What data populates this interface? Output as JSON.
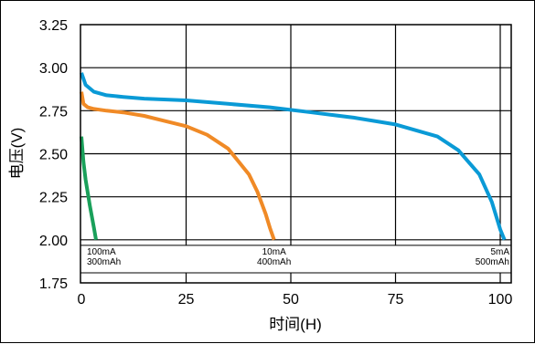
{
  "chart_data": {
    "type": "line",
    "xlabel": "时间(H)",
    "ylabel": "电压(V)",
    "xlim": [
      0,
      100
    ],
    "ylim": [
      1.75,
      3.25
    ],
    "x_ticks": [
      "0",
      "25",
      "50",
      "75",
      "100"
    ],
    "y_ticks": [
      "3.25",
      "3.00",
      "2.75",
      "2.50",
      "2.25",
      "2.00",
      "1.75"
    ],
    "grid": true,
    "series": [
      {
        "color": "#0a9ad6",
        "x": [
          0,
          1,
          3,
          6,
          10,
          15,
          25,
          35,
          45,
          55,
          65,
          75,
          85,
          90,
          95,
          98,
          100,
          101
        ],
        "y": [
          2.97,
          2.9,
          2.86,
          2.84,
          2.83,
          2.82,
          2.81,
          2.79,
          2.77,
          2.74,
          2.71,
          2.67,
          2.6,
          2.52,
          2.38,
          2.22,
          2.06,
          2.0
        ]
      },
      {
        "color": "#f08a26",
        "x": [
          0,
          0.5,
          1.5,
          3,
          6,
          10,
          15,
          20,
          25,
          30,
          35,
          40,
          42,
          44,
          45,
          46
        ],
        "y": [
          2.86,
          2.79,
          2.77,
          2.76,
          2.75,
          2.74,
          2.72,
          2.69,
          2.66,
          2.61,
          2.53,
          2.38,
          2.28,
          2.15,
          2.07,
          2.0
        ]
      },
      {
        "color": "#1aa05a",
        "x": [
          0,
          0.5,
          1,
          2,
          3,
          3.5
        ],
        "y": [
          2.6,
          2.45,
          2.35,
          2.2,
          2.07,
          2.0
        ]
      }
    ],
    "annotations": [
      {
        "lines": [
          "100mA",
          "300mAh"
        ],
        "x": 0,
        "align": "left"
      },
      {
        "lines": [
          "10mA",
          "400mAh"
        ],
        "x": 46,
        "align": "middle"
      },
      {
        "lines": [
          "5mA",
          "500mAh"
        ],
        "x": 101,
        "align": "right"
      }
    ]
  }
}
